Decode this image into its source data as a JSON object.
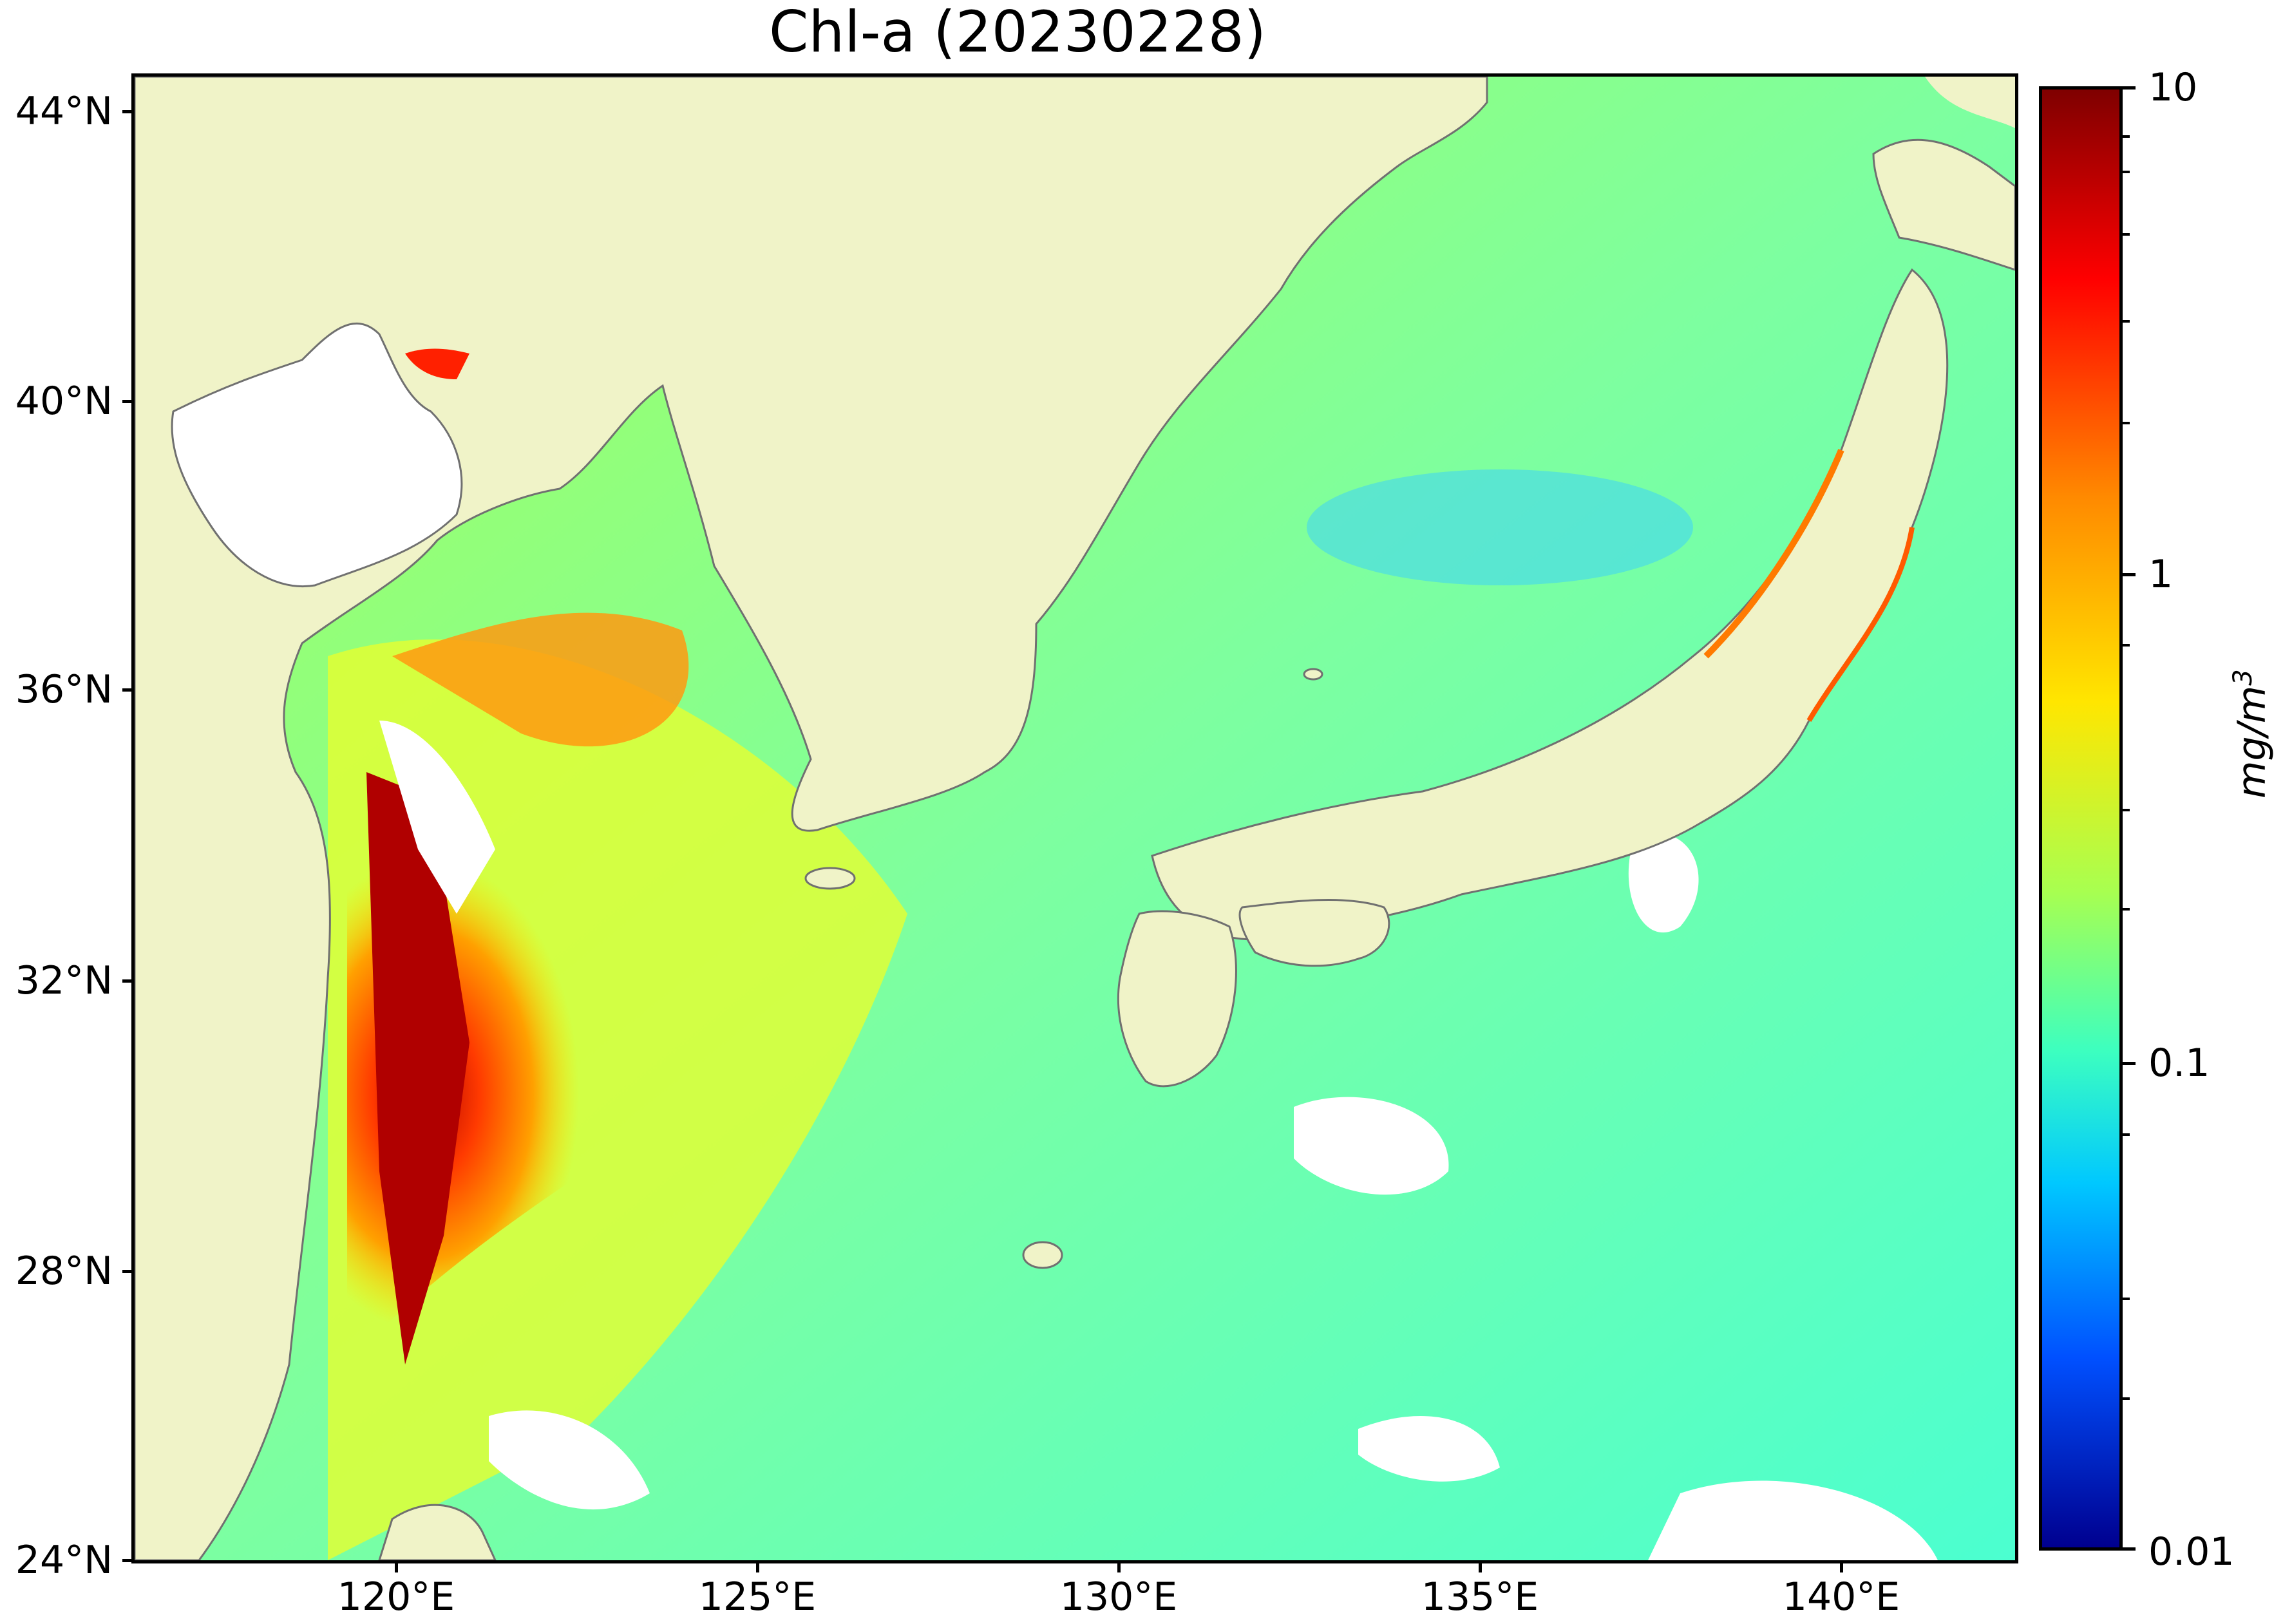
{
  "title": "Chl-a (20230228)",
  "y_axis": {
    "ticks": [
      "44°N",
      "40°N",
      "36°N",
      "32°N",
      "28°N",
      "24°N"
    ]
  },
  "x_axis": {
    "ticks": [
      "120°E",
      "125°E",
      "130°E",
      "135°E",
      "140°E"
    ]
  },
  "colorbar": {
    "labels": [
      "10",
      "1",
      "0.1",
      "0.01"
    ],
    "unit": "mg/m",
    "unit_exp": "3",
    "scale": "log",
    "range": [
      0.01,
      10
    ],
    "colors": [
      "#7f0000",
      "#ff0000",
      "#ff8a00",
      "#ffe600",
      "#a8ff50",
      "#3cffc0",
      "#00c8ff",
      "#0050ff",
      "#00008f"
    ]
  },
  "colors": {
    "land": "#f0f3c8",
    "no_data": "#ffffff",
    "coast": "#707070",
    "ocean_typical": "#7dffa0"
  }
}
